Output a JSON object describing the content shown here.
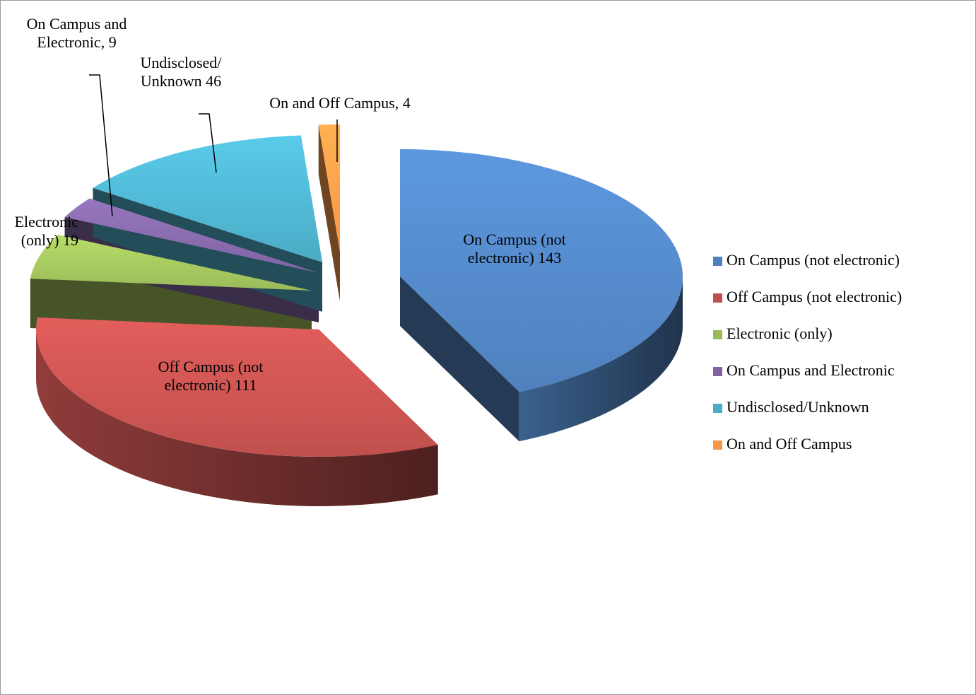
{
  "chart_data": {
    "type": "pie3d",
    "categories": [
      "On Campus (not electronic)",
      "Off Campus (not electronic)",
      "Electronic (only)",
      "On Campus and Electronic",
      "Undisclosed/Unknown",
      "On and Off Campus"
    ],
    "values": [
      143,
      111,
      19,
      9,
      46,
      4
    ],
    "value_labels": [
      "On Campus (not electronic) 143",
      "Off Campus (not electronic) 111",
      "Electronic (only) 19",
      "On Campus and Electronic, 9",
      "Undisclosed/ Unknown 46",
      "On and Off Campus, 4"
    ],
    "colors": [
      "#4f81bd",
      "#c0504d",
      "#9bbb59",
      "#8064a2",
      "#4bacc6",
      "#f79646"
    ],
    "legend": "right"
  }
}
